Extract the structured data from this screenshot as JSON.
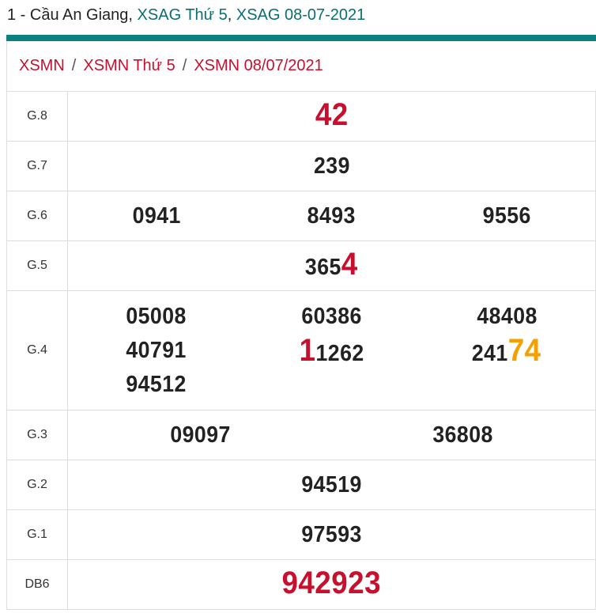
{
  "title": {
    "part1": "1 - Cầu An Giang, ",
    "part2": "XSAG Thứ 5",
    "part3": ", ",
    "part4": "XSAG 08-07-2021"
  },
  "breadcrumb": [
    {
      "label": "XSMN"
    },
    {
      "label": "XSMN Thứ 5"
    },
    {
      "label": "XSMN 08/07/2021"
    }
  ],
  "breadcrumb_separator": "/",
  "colors": {
    "teal": "#0a8080",
    "red": "#c8102e",
    "orange": "#f5a000"
  },
  "prizes": [
    {
      "label": "G.8",
      "cols": [
        [
          [
            {
              "t": "42",
              "c": "#c8102e",
              "big": true
            }
          ]
        ]
      ]
    },
    {
      "label": "G.7",
      "cols": [
        [
          [
            {
              "t": "239"
            }
          ]
        ]
      ]
    },
    {
      "label": "G.6",
      "cols": [
        [
          [
            {
              "t": "0941"
            }
          ]
        ],
        [
          [
            {
              "t": "8493"
            }
          ]
        ],
        [
          [
            {
              "t": "9556"
            }
          ]
        ]
      ]
    },
    {
      "label": "G.5",
      "cols": [
        [
          [
            {
              "t": "365"
            },
            {
              "t": "4",
              "c": "#c8102e",
              "big": true
            }
          ]
        ]
      ]
    },
    {
      "label": "G.4",
      "cols": [
        [
          [
            {
              "t": "05008"
            }
          ],
          [
            {
              "t": "40791"
            }
          ],
          [
            {
              "t": "94512"
            }
          ]
        ],
        [
          [
            {
              "t": "60386"
            }
          ],
          [
            {
              "t": "1",
              "c": "#c8102e",
              "big": true
            },
            {
              "t": "1262"
            }
          ]
        ],
        [
          [
            {
              "t": "48408"
            }
          ],
          [
            {
              "t": "241"
            },
            {
              "t": "74",
              "c": "#f5a000",
              "big": true
            }
          ]
        ]
      ]
    },
    {
      "label": "G.3",
      "cols": [
        [
          [
            {
              "t": "09097"
            }
          ]
        ],
        [
          [
            {
              "t": "36808"
            }
          ]
        ]
      ]
    },
    {
      "label": "G.2",
      "cols": [
        [
          [
            {
              "t": "94519"
            }
          ]
        ]
      ]
    },
    {
      "label": "G.1",
      "cols": [
        [
          [
            {
              "t": "97593"
            }
          ]
        ]
      ]
    },
    {
      "label": "DB6",
      "cols": [
        [
          [
            {
              "t": "942923",
              "c": "#c8102e",
              "big": true
            }
          ]
        ]
      ]
    }
  ]
}
